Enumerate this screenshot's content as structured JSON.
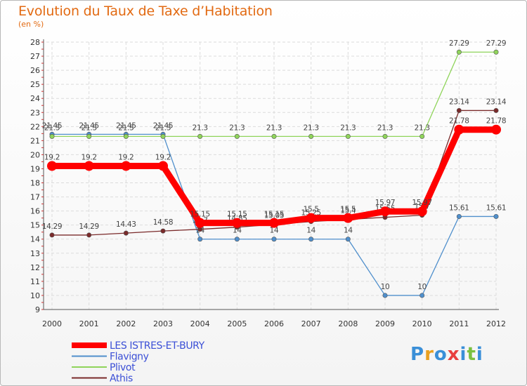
{
  "chart_data": {
    "type": "line",
    "title": "Evolution du Taux de Taxe d’Habitation",
    "subtitle": "(en %)",
    "x": [
      "2000",
      "2001",
      "2002",
      "2003",
      "2004",
      "2005",
      "2006",
      "2007",
      "2008",
      "2009",
      "2010",
      "2011",
      "2012"
    ],
    "ylim": [
      9,
      28
    ],
    "yticks": [
      9,
      10,
      11,
      12,
      13,
      14,
      15,
      16,
      17,
      18,
      19,
      20,
      21,
      22,
      23,
      24,
      25,
      26,
      27,
      28
    ],
    "grid": true,
    "legend_position": "bottom-left",
    "series": [
      {
        "name": "LES ISTRES-ET-BURY",
        "color": "#ff0000",
        "values": [
          19.2,
          19.2,
          19.2,
          19.2,
          15.15,
          15.15,
          15.15,
          15.5,
          15.5,
          15.97,
          15.97,
          21.78,
          21.78
        ],
        "labels": [
          "19.2",
          "19.2",
          "19.2",
          "19.2",
          "15.15",
          "15.15",
          "15.15",
          "15.5",
          "15.5",
          "15.97",
          "15.97",
          "21.78",
          "21.78"
        ]
      },
      {
        "name": "Flavigny",
        "color": "#4f8fcc",
        "values": [
          21.45,
          21.45,
          21.45,
          21.45,
          14,
          14,
          14,
          14,
          14,
          10,
          10,
          15.61,
          15.61
        ],
        "labels": [
          "21.45",
          "21.45",
          "21.45",
          "21.45",
          "14",
          "14",
          "14",
          "14",
          "14",
          "10",
          "10",
          "15.61",
          "15.61"
        ]
      },
      {
        "name": "Plivot",
        "color": "#8fd45a",
        "values": [
          21.3,
          21.3,
          21.3,
          21.3,
          21.3,
          21.3,
          21.3,
          21.3,
          21.3,
          21.3,
          21.3,
          27.29,
          27.29
        ],
        "labels": [
          "21.3",
          "21.3",
          "21.3",
          "21.3",
          "21.3",
          "21.3",
          "21.3",
          "21.3",
          "21.3",
          "21.3",
          "21.3",
          "27.29",
          "27.29"
        ]
      },
      {
        "name": "Athis",
        "color": "#7a2a2a",
        "values": [
          14.29,
          14.29,
          14.43,
          14.58,
          14.7,
          14.85,
          15.05,
          15.25,
          15.4,
          15.55,
          15.7,
          23.14,
          23.14
        ],
        "labels": [
          "14.29",
          "14.29",
          "14.43",
          "14.58",
          "14.7",
          "14.85",
          "15.05",
          "15.25",
          "15.4",
          "15.55",
          "15.7",
          "23.14",
          "23.14"
        ]
      }
    ]
  },
  "logo": {
    "text": "Proxiti",
    "letters": [
      "P",
      "r",
      "o",
      "x",
      "i",
      "t",
      "i"
    ],
    "colors": [
      "#3a8fd8",
      "#e8a020",
      "#3a8fd8",
      "#e84040",
      "#3a8fd8",
      "#7ac040",
      "#3a8fd8"
    ]
  }
}
